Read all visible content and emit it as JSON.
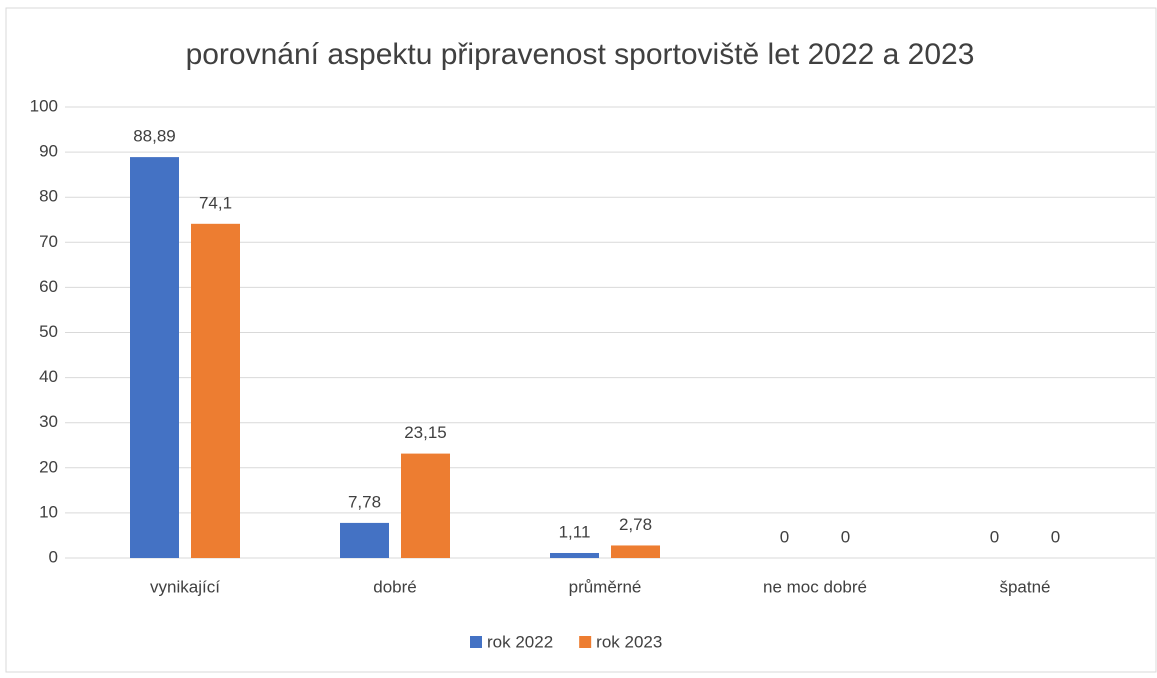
{
  "chart_data": {
    "type": "bar",
    "title": "porovnání aspektu připravenost sportoviště let 2022 a 2023",
    "categories": [
      "vynikající",
      "dobré",
      "průměrné",
      "ne moc dobré",
      "špatné"
    ],
    "series": [
      {
        "name": "rok 2022",
        "color": "#4472c4",
        "values": [
          88.89,
          7.78,
          1.11,
          0,
          0
        ],
        "value_labels": [
          "88,89",
          "7,78",
          "1,11",
          "0",
          "0"
        ]
      },
      {
        "name": "rok 2023",
        "color": "#ed7d31",
        "values": [
          74.1,
          23.15,
          2.78,
          0,
          0
        ],
        "value_labels": [
          "74,1",
          "23,15",
          "2,78",
          "0",
          "0"
        ]
      }
    ],
    "ylim": [
      0,
      100
    ],
    "yticks": [
      0,
      10,
      20,
      30,
      40,
      50,
      60,
      70,
      80,
      90,
      100
    ],
    "grid": true,
    "legend": "bottom"
  }
}
